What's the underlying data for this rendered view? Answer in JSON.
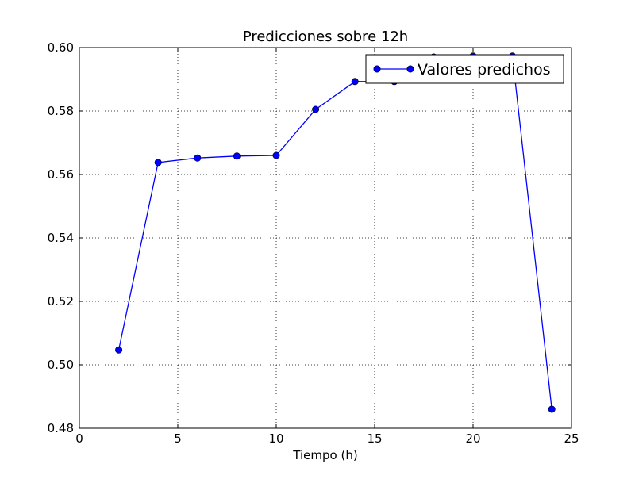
{
  "chart_data": {
    "type": "line",
    "title": "Predicciones sobre 12h",
    "xlabel": "Tiempo (h)",
    "ylabel": "",
    "xlim": [
      0,
      25
    ],
    "ylim": [
      0.48,
      0.6
    ],
    "xticks": [
      0,
      5,
      10,
      15,
      20,
      25
    ],
    "yticks": [
      0.48,
      0.5,
      0.52,
      0.54,
      0.56,
      0.58,
      0.6
    ],
    "xtick_labels": [
      "0",
      "5",
      "10",
      "15",
      "20",
      "25"
    ],
    "ytick_labels": [
      "0.48",
      "0.50",
      "0.52",
      "0.54",
      "0.56",
      "0.58",
      "0.60"
    ],
    "grid": true,
    "legend_position": "top-right",
    "series": [
      {
        "name": "Valores predichos",
        "color": "#0000ff",
        "marker": "circle",
        "x": [
          2,
          4,
          6,
          8,
          10,
          12,
          14,
          16,
          18,
          20,
          22,
          24
        ],
        "y": [
          0.5047,
          0.5638,
          0.5652,
          0.5658,
          0.566,
          0.5805,
          0.5893,
          0.5893,
          0.597,
          0.5973,
          0.5973,
          0.486
        ]
      }
    ]
  }
}
